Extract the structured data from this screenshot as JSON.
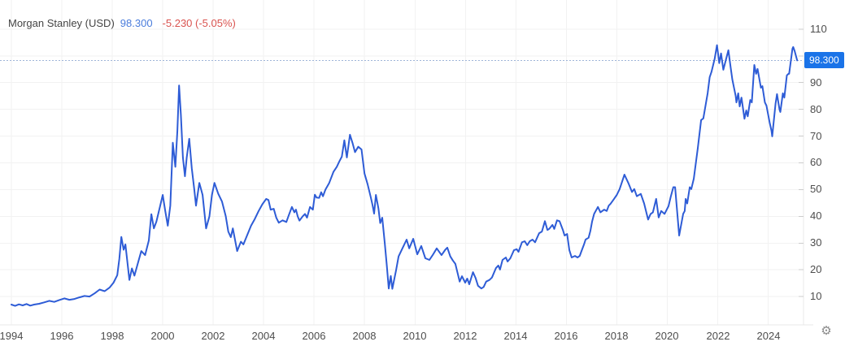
{
  "header": {
    "title": "Morgan Stanley (USD)",
    "price": "98.300",
    "change": "-5.230 (-5.05%)"
  },
  "price_badge": {
    "label": "98.300"
  },
  "settings_icon": "⚙",
  "colors": {
    "line": "#2e5cd6",
    "badge_bg": "#1a73e8",
    "badge_text": "#ffffff",
    "price_text": "#4a7cdb",
    "change_text": "#d9534f",
    "title_text": "#444444",
    "axis_text": "#4d4d4d",
    "grid": "#f2f2f2",
    "axis_border": "#e8e8e8",
    "tick": "#cccccc",
    "dotted_line": "#9fb4d8"
  },
  "chart_data": {
    "type": "line",
    "title": "Morgan Stanley (USD)",
    "xlabel": "",
    "ylabel": "",
    "grid": true,
    "legend": false,
    "x_ticks": [
      1994,
      1996,
      1998,
      2000,
      2002,
      2004,
      2006,
      2008,
      2010,
      2012,
      2014,
      2016,
      2018,
      2020,
      2022,
      2024
    ],
    "x_tick_labels": [
      "1994",
      "1996",
      "1998",
      "2000",
      "2002",
      "2004",
      "2006",
      "2008",
      "2010",
      "2012",
      "2014",
      "2016",
      "2018",
      "2020",
      "2022",
      "2024"
    ],
    "y_ticks": [
      10,
      20,
      30,
      40,
      50,
      60,
      70,
      80,
      90,
      100,
      110
    ],
    "y_tick_labels": [
      "10",
      "20",
      "30",
      "40",
      "50",
      "60",
      "70",
      "80",
      "90",
      "100",
      "110"
    ],
    "x_domain": [
      1993.55,
      2025.4
    ],
    "y_domain": [
      -0.6,
      120.9
    ],
    "last_price": 98.3,
    "last_price_label": "98.300",
    "series": [
      {
        "name": "Morgan Stanley (USD)",
        "points": [
          [
            1994.0,
            7.0
          ],
          [
            1994.15,
            6.5
          ],
          [
            1994.3,
            7.1
          ],
          [
            1994.45,
            6.7
          ],
          [
            1994.6,
            7.2
          ],
          [
            1994.75,
            6.6
          ],
          [
            1994.9,
            7.0
          ],
          [
            1995.1,
            7.3
          ],
          [
            1995.3,
            7.8
          ],
          [
            1995.5,
            8.4
          ],
          [
            1995.7,
            8.0
          ],
          [
            1995.9,
            8.7
          ],
          [
            1996.1,
            9.3
          ],
          [
            1996.3,
            8.8
          ],
          [
            1996.5,
            9.1
          ],
          [
            1996.7,
            9.7
          ],
          [
            1996.9,
            10.2
          ],
          [
            1997.1,
            10.0
          ],
          [
            1997.3,
            11.2
          ],
          [
            1997.5,
            12.6
          ],
          [
            1997.7,
            12.0
          ],
          [
            1997.9,
            13.4
          ],
          [
            1998.05,
            15.2
          ],
          [
            1998.2,
            18.0
          ],
          [
            1998.28,
            24.0
          ],
          [
            1998.36,
            32.3
          ],
          [
            1998.45,
            27.5
          ],
          [
            1998.52,
            29.5
          ],
          [
            1998.68,
            16.2
          ],
          [
            1998.78,
            20.5
          ],
          [
            1998.88,
            17.8
          ],
          [
            1999.0,
            22.0
          ],
          [
            1999.15,
            27.0
          ],
          [
            1999.3,
            25.5
          ],
          [
            1999.45,
            31.0
          ],
          [
            1999.55,
            40.8
          ],
          [
            1999.65,
            35.5
          ],
          [
            1999.75,
            38.0
          ],
          [
            1999.9,
            44.0
          ],
          [
            2000.0,
            48.0
          ],
          [
            2000.1,
            42.0
          ],
          [
            2000.2,
            36.5
          ],
          [
            2000.3,
            44.0
          ],
          [
            2000.4,
            67.5
          ],
          [
            2000.5,
            58.5
          ],
          [
            2000.58,
            72.0
          ],
          [
            2000.65,
            88.9
          ],
          [
            2000.72,
            78.0
          ],
          [
            2000.8,
            62.0
          ],
          [
            2000.88,
            55.0
          ],
          [
            2000.95,
            62.0
          ],
          [
            2001.05,
            69.0
          ],
          [
            2001.15,
            58.0
          ],
          [
            2001.25,
            50.0
          ],
          [
            2001.32,
            44.0
          ],
          [
            2001.45,
            52.5
          ],
          [
            2001.58,
            48.0
          ],
          [
            2001.72,
            35.5
          ],
          [
            2001.85,
            40.0
          ],
          [
            2001.95,
            48.0
          ],
          [
            2002.05,
            52.5
          ],
          [
            2002.2,
            48.5
          ],
          [
            2002.35,
            45.5
          ],
          [
            2002.5,
            40.0
          ],
          [
            2002.6,
            34.3
          ],
          [
            2002.7,
            32.2
          ],
          [
            2002.78,
            35.5
          ],
          [
            2002.95,
            27.0
          ],
          [
            2003.1,
            30.5
          ],
          [
            2003.2,
            29.5
          ],
          [
            2003.35,
            33.0
          ],
          [
            2003.5,
            36.5
          ],
          [
            2003.65,
            39.0
          ],
          [
            2003.8,
            42.0
          ],
          [
            2003.95,
            44.5
          ],
          [
            2004.1,
            46.5
          ],
          [
            2004.19,
            46.1
          ],
          [
            2004.28,
            42.5
          ],
          [
            2004.4,
            42.8
          ],
          [
            2004.5,
            39.5
          ],
          [
            2004.6,
            37.6
          ],
          [
            2004.75,
            38.5
          ],
          [
            2004.9,
            37.9
          ],
          [
            2005.0,
            40.5
          ],
          [
            2005.12,
            43.5
          ],
          [
            2005.22,
            41.5
          ],
          [
            2005.28,
            42.5
          ],
          [
            2005.35,
            40.0
          ],
          [
            2005.42,
            38.4
          ],
          [
            2005.55,
            40.0
          ],
          [
            2005.64,
            40.9
          ],
          [
            2005.72,
            39.5
          ],
          [
            2005.84,
            43.5
          ],
          [
            2005.95,
            42.5
          ],
          [
            2006.03,
            48.1
          ],
          [
            2006.1,
            47.0
          ],
          [
            2006.2,
            46.9
          ],
          [
            2006.28,
            49.0
          ],
          [
            2006.35,
            47.5
          ],
          [
            2006.45,
            50.0
          ],
          [
            2006.6,
            52.5
          ],
          [
            2006.77,
            56.7
          ],
          [
            2006.9,
            58.5
          ],
          [
            2007.0,
            60.5
          ],
          [
            2007.1,
            62.3
          ],
          [
            2007.2,
            68.4
          ],
          [
            2007.3,
            62.0
          ],
          [
            2007.42,
            70.5
          ],
          [
            2007.52,
            67.5
          ],
          [
            2007.62,
            64.0
          ],
          [
            2007.75,
            66.0
          ],
          [
            2007.88,
            65.0
          ],
          [
            2008.0,
            56.0
          ],
          [
            2008.12,
            52.0
          ],
          [
            2008.25,
            47.0
          ],
          [
            2008.32,
            44.0
          ],
          [
            2008.38,
            41.0
          ],
          [
            2008.45,
            48.0
          ],
          [
            2008.55,
            43.0
          ],
          [
            2008.62,
            37.5
          ],
          [
            2008.7,
            39.5
          ],
          [
            2008.8,
            30.0
          ],
          [
            2008.88,
            22.0
          ],
          [
            2008.96,
            13.0
          ],
          [
            2009.04,
            17.7
          ],
          [
            2009.1,
            12.9
          ],
          [
            2009.25,
            19.8
          ],
          [
            2009.35,
            25.0
          ],
          [
            2009.5,
            28.0
          ],
          [
            2009.67,
            31.3
          ],
          [
            2009.77,
            28.0
          ],
          [
            2009.93,
            31.6
          ],
          [
            2010.09,
            25.8
          ],
          [
            2010.25,
            28.9
          ],
          [
            2010.41,
            24.3
          ],
          [
            2010.57,
            23.7
          ],
          [
            2010.7,
            25.5
          ],
          [
            2010.86,
            28.0
          ],
          [
            2011.05,
            25.5
          ],
          [
            2011.2,
            27.5
          ],
          [
            2011.28,
            28.3
          ],
          [
            2011.4,
            25.0
          ],
          [
            2011.5,
            23.5
          ],
          [
            2011.6,
            22.2
          ],
          [
            2011.77,
            15.6
          ],
          [
            2011.86,
            17.6
          ],
          [
            2011.99,
            15.2
          ],
          [
            2012.07,
            16.7
          ],
          [
            2012.15,
            14.6
          ],
          [
            2012.3,
            19.1
          ],
          [
            2012.4,
            17.0
          ],
          [
            2012.5,
            14.0
          ],
          [
            2012.63,
            13.0
          ],
          [
            2012.72,
            13.6
          ],
          [
            2012.82,
            15.6
          ],
          [
            2012.95,
            16.2
          ],
          [
            2013.05,
            17.1
          ],
          [
            2013.21,
            20.7
          ],
          [
            2013.3,
            21.6
          ],
          [
            2013.37,
            20.1
          ],
          [
            2013.47,
            23.7
          ],
          [
            2013.6,
            24.6
          ],
          [
            2013.67,
            23.1
          ],
          [
            2013.78,
            24.3
          ],
          [
            2013.92,
            27.3
          ],
          [
            2014.03,
            27.7
          ],
          [
            2014.1,
            26.7
          ],
          [
            2014.24,
            30.3
          ],
          [
            2014.35,
            30.7
          ],
          [
            2014.45,
            29.2
          ],
          [
            2014.55,
            30.7
          ],
          [
            2014.66,
            31.3
          ],
          [
            2014.76,
            30.3
          ],
          [
            2014.92,
            33.7
          ],
          [
            2015.03,
            34.3
          ],
          [
            2015.15,
            38.2
          ],
          [
            2015.25,
            34.9
          ],
          [
            2015.32,
            35.3
          ],
          [
            2015.45,
            36.8
          ],
          [
            2015.52,
            35.3
          ],
          [
            2015.63,
            38.5
          ],
          [
            2015.73,
            38.2
          ],
          [
            2015.86,
            34.9
          ],
          [
            2015.93,
            32.8
          ],
          [
            2016.03,
            33.4
          ],
          [
            2016.12,
            27.3
          ],
          [
            2016.21,
            24.6
          ],
          [
            2016.34,
            25.2
          ],
          [
            2016.44,
            24.6
          ],
          [
            2016.53,
            25.2
          ],
          [
            2016.6,
            27.0
          ],
          [
            2016.7,
            29.5
          ],
          [
            2016.76,
            31.3
          ],
          [
            2016.88,
            32.0
          ],
          [
            2016.95,
            34.5
          ],
          [
            2017.02,
            38.0
          ],
          [
            2017.1,
            40.9
          ],
          [
            2017.25,
            43.5
          ],
          [
            2017.35,
            41.5
          ],
          [
            2017.5,
            42.5
          ],
          [
            2017.6,
            42.0
          ],
          [
            2017.68,
            44.0
          ],
          [
            2017.75,
            44.7
          ],
          [
            2017.89,
            46.5
          ],
          [
            2018.0,
            48.0
          ],
          [
            2018.11,
            50.2
          ],
          [
            2018.3,
            55.6
          ],
          [
            2018.47,
            52.2
          ],
          [
            2018.6,
            49.1
          ],
          [
            2018.69,
            50.2
          ],
          [
            2018.79,
            47.5
          ],
          [
            2018.95,
            48.4
          ],
          [
            2019.08,
            44.8
          ],
          [
            2019.24,
            38.8
          ],
          [
            2019.34,
            40.9
          ],
          [
            2019.43,
            41.5
          ],
          [
            2019.56,
            46.5
          ],
          [
            2019.66,
            39.6
          ],
          [
            2019.76,
            42.0
          ],
          [
            2019.89,
            40.9
          ],
          [
            2020.05,
            43.8
          ],
          [
            2020.14,
            47.4
          ],
          [
            2020.24,
            50.9
          ],
          [
            2020.31,
            50.9
          ],
          [
            2020.47,
            32.8
          ],
          [
            2020.63,
            40.9
          ],
          [
            2020.69,
            42.0
          ],
          [
            2020.73,
            46.5
          ],
          [
            2020.79,
            44.8
          ],
          [
            2020.89,
            50.9
          ],
          [
            2020.95,
            50.2
          ],
          [
            2021.05,
            54.1
          ],
          [
            2021.21,
            65.5
          ],
          [
            2021.34,
            76.0
          ],
          [
            2021.43,
            76.6
          ],
          [
            2021.6,
            86.0
          ],
          [
            2021.68,
            92.0
          ],
          [
            2021.75,
            94.0
          ],
          [
            2021.88,
            99.0
          ],
          [
            2021.97,
            104.0
          ],
          [
            2022.06,
            97.3
          ],
          [
            2022.13,
            100.9
          ],
          [
            2022.22,
            94.8
          ],
          [
            2022.42,
            102.1
          ],
          [
            2022.51,
            95.7
          ],
          [
            2022.58,
            91.1
          ],
          [
            2022.71,
            85.0
          ],
          [
            2022.74,
            82.6
          ],
          [
            2022.81,
            86.0
          ],
          [
            2022.87,
            81.1
          ],
          [
            2022.94,
            84.4
          ],
          [
            2023.06,
            76.5
          ],
          [
            2023.13,
            79.6
          ],
          [
            2023.19,
            77.4
          ],
          [
            2023.29,
            83.5
          ],
          [
            2023.35,
            82.6
          ],
          [
            2023.45,
            96.6
          ],
          [
            2023.52,
            93.3
          ],
          [
            2023.58,
            95.1
          ],
          [
            2023.71,
            88.1
          ],
          [
            2023.77,
            88.7
          ],
          [
            2023.87,
            82.6
          ],
          [
            2023.93,
            81.4
          ],
          [
            2024.06,
            75.0
          ],
          [
            2024.13,
            72.0
          ],
          [
            2024.16,
            69.9
          ],
          [
            2024.29,
            82.1
          ],
          [
            2024.35,
            85.7
          ],
          [
            2024.45,
            79.9
          ],
          [
            2024.48,
            79.0
          ],
          [
            2024.58,
            86.0
          ],
          [
            2024.64,
            84.4
          ],
          [
            2024.74,
            92.7
          ],
          [
            2024.8,
            93.3
          ],
          [
            2024.83,
            93.3
          ],
          [
            2024.96,
            102.7
          ],
          [
            2024.99,
            103.3
          ],
          [
            2025.05,
            101.8
          ],
          [
            2025.15,
            98.3
          ]
        ]
      }
    ]
  }
}
